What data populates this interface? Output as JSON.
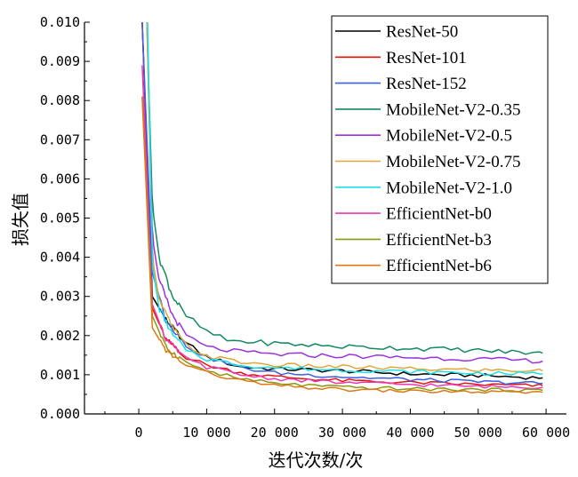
{
  "chart_data": {
    "type": "line",
    "xlabel": "迭代次数/次",
    "ylabel": "损失值",
    "xlim": [
      -8000,
      63000
    ],
    "ylim": [
      0,
      0.01
    ],
    "x_ticks": [
      {
        "value": 0,
        "label": "0"
      },
      {
        "value": 10000,
        "label": "10 000"
      },
      {
        "value": 20000,
        "label": "20 000"
      },
      {
        "value": 30000,
        "label": "30 000"
      },
      {
        "value": 40000,
        "label": "40 000"
      },
      {
        "value": 50000,
        "label": "50 000"
      },
      {
        "value": 60000,
        "label": "60 000"
      }
    ],
    "y_ticks": [
      {
        "value": 0,
        "label": "0.000"
      },
      {
        "value": 0.001,
        "label": "0.001"
      },
      {
        "value": 0.002,
        "label": "0.002"
      },
      {
        "value": 0.003,
        "label": "0.003"
      },
      {
        "value": 0.004,
        "label": "0.004"
      },
      {
        "value": 0.005,
        "label": "0.005"
      },
      {
        "value": 0.006,
        "label": "0.006"
      },
      {
        "value": 0.007,
        "label": "0.007"
      },
      {
        "value": 0.008,
        "label": "0.008"
      },
      {
        "value": 0.009,
        "label": "0.009"
      },
      {
        "value": 0.01,
        "label": "0.010"
      }
    ],
    "grid": false,
    "legend_position": "top-right",
    "series": [
      {
        "name": "ResNet-50",
        "color": "#000000",
        "x": [
          500,
          2000,
          4000,
          7000,
          10000,
          15000,
          20000,
          30000,
          40000,
          50000,
          59500
        ],
        "y": [
          0.01,
          0.003,
          0.0024,
          0.0018,
          0.00145,
          0.0012,
          0.00115,
          0.0011,
          0.00102,
          0.00098,
          0.00092
        ]
      },
      {
        "name": "ResNet-101",
        "color": "#e8140c",
        "x": [
          500,
          2000,
          4000,
          7000,
          10000,
          15000,
          20000,
          30000,
          40000,
          50000,
          59500
        ],
        "y": [
          0.01,
          0.0027,
          0.0019,
          0.00145,
          0.00125,
          0.00105,
          0.00095,
          0.00085,
          0.0008,
          0.00075,
          0.00072
        ]
      },
      {
        "name": "ResNet-152",
        "color": "#3a5fe8",
        "x": [
          500,
          2000,
          4000,
          7000,
          10000,
          15000,
          20000,
          30000,
          40000,
          50000,
          59500
        ],
        "y": [
          0.01,
          0.0036,
          0.0024,
          0.00175,
          0.00145,
          0.00118,
          0.00105,
          0.00095,
          0.00088,
          0.00082,
          0.00078
        ]
      },
      {
        "name": "MobileNet-V2-0.35",
        "color": "#138a5e",
        "x": [
          1200,
          2000,
          3000,
          5000,
          7000,
          10000,
          13000,
          20000,
          30000,
          40000,
          50000,
          59500
        ],
        "y": [
          0.01,
          0.0053,
          0.004,
          0.003,
          0.0025,
          0.0021,
          0.00188,
          0.0018,
          0.00172,
          0.00168,
          0.00162,
          0.00155
        ]
      },
      {
        "name": "MobileNet-V2-0.5",
        "color": "#9a32e0",
        "x": [
          1200,
          2000,
          3000,
          5000,
          7000,
          10000,
          15000,
          20000,
          30000,
          40000,
          50000,
          59500
        ],
        "y": [
          0.01,
          0.0045,
          0.0034,
          0.0025,
          0.002,
          0.0017,
          0.00158,
          0.00152,
          0.00148,
          0.00144,
          0.0014,
          0.00135
        ]
      },
      {
        "name": "MobileNet-V2-0.75",
        "color": "#e0a63a",
        "x": [
          1200,
          2000,
          3000,
          5000,
          7000,
          10000,
          15000,
          20000,
          30000,
          40000,
          50000,
          59500
        ],
        "y": [
          0.01,
          0.004,
          0.0029,
          0.0022,
          0.00175,
          0.00148,
          0.00132,
          0.00125,
          0.0012,
          0.00115,
          0.00112,
          0.0011
        ]
      },
      {
        "name": "MobileNet-V2-1.0",
        "color": "#18e0e8",
        "x": [
          1300,
          2000,
          3000,
          5000,
          7000,
          10000,
          15000,
          20000,
          30000,
          40000,
          50000,
          59500
        ],
        "y": [
          0.01,
          0.0038,
          0.0027,
          0.002,
          0.00165,
          0.0014,
          0.00125,
          0.00118,
          0.00112,
          0.00108,
          0.00104,
          0.00102
        ]
      },
      {
        "name": "EfficientNet-b0",
        "color": "#e83ab4",
        "x": [
          500,
          2000,
          4000,
          7000,
          10000,
          15000,
          20000,
          30000,
          40000,
          50000,
          59500
        ],
        "y": [
          0.0089,
          0.0028,
          0.0019,
          0.0014,
          0.0012,
          0.001,
          0.0009,
          0.0008,
          0.00075,
          0.0007,
          0.00068
        ]
      },
      {
        "name": "EfficientNet-b3",
        "color": "#8a9a10",
        "x": [
          500,
          2000,
          4000,
          7000,
          10000,
          15000,
          20000,
          30000,
          40000,
          50000,
          59500
        ],
        "y": [
          0.0081,
          0.0025,
          0.0017,
          0.0013,
          0.0011,
          0.0009,
          0.00078,
          0.00068,
          0.00064,
          0.00062,
          0.0006
        ]
      },
      {
        "name": "EfficientNet-b6",
        "color": "#e07818",
        "x": [
          500,
          2000,
          4000,
          7000,
          10000,
          15000,
          20000,
          30000,
          40000,
          50000,
          59500
        ],
        "y": [
          0.0081,
          0.0022,
          0.0016,
          0.00125,
          0.00105,
          0.00085,
          0.00072,
          0.00062,
          0.00058,
          0.00056,
          0.00055
        ]
      }
    ]
  }
}
